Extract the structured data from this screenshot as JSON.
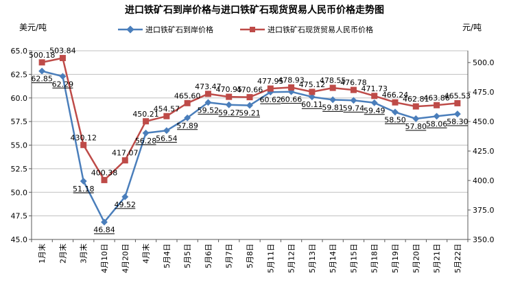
{
  "chart_data": {
    "type": "line",
    "title": "进口铁矿石到岸价格与进口铁矿石现货贸易人民币价格走势图",
    "y_left_unit": "美元/吨",
    "y_right_unit": "元/吨",
    "categories": [
      "1月末",
      "2月末",
      "3月末",
      "4月10日",
      "4月20日",
      "4月末",
      "5月4日",
      "5月5日",
      "5月6日",
      "5月7日",
      "5月8日",
      "5月11日",
      "5月12日",
      "5月13日",
      "5月14日",
      "5月15日",
      "5月18日",
      "5月19日",
      "5月20日",
      "5月21日",
      "5月22日"
    ],
    "y_left_range": [
      45.0,
      65.0
    ],
    "y_left_ticks": [
      "45.0",
      "47.5",
      "50.0",
      "52.5",
      "55.0",
      "57.5",
      "60.0",
      "62.5",
      "65.0"
    ],
    "y_right_range": [
      350.0,
      510.0
    ],
    "y_right_ticks": [
      "350.0",
      "375.0",
      "400.0",
      "425.0",
      "450.0",
      "475.0",
      "500.0"
    ],
    "grid": true,
    "legend_position": "top",
    "series": [
      {
        "name": "进口铁矿石到岸价格",
        "axis": "left",
        "color": "#4a7ebb",
        "marker": "diamond",
        "values": [
          62.85,
          62.29,
          51.18,
          46.84,
          49.52,
          56.28,
          56.54,
          57.89,
          59.52,
          59.27,
          59.21,
          60.62,
          60.66,
          60.11,
          59.81,
          59.74,
          59.49,
          58.5,
          57.8,
          58.06,
          58.3
        ],
        "labels": [
          "62.85",
          "62.29",
          "51.18",
          "46.84",
          "49.52",
          "56.28",
          "56.54",
          "57.89",
          "59.52",
          "59.27",
          "59.21",
          "60.62",
          "60.66",
          "60.11",
          "59.81",
          "59.74",
          "59.49",
          "58.50",
          "57.80",
          "58.06",
          "58.30"
        ]
      },
      {
        "name": "进口铁矿石现货贸易人民币价格",
        "axis": "right",
        "color": "#be4b48",
        "marker": "square",
        "values": [
          500.18,
          503.84,
          430.12,
          400.38,
          417.07,
          450.21,
          454.57,
          465.6,
          473.47,
          470.95,
          470.66,
          477.95,
          478.93,
          475.12,
          478.55,
          476.78,
          471.73,
          466.24,
          462.81,
          463.86,
          465.53
        ],
        "labels": [
          "500.18",
          "503.84",
          "430.12",
          "400.38",
          "417.07",
          "450.21",
          "454.57",
          "465.60",
          "473.47",
          "470.95",
          "470.66",
          "477.95",
          "478.93",
          "475.12",
          "478.55",
          "476.78",
          "471.73",
          "466.24",
          "462.81",
          "463.86",
          "465.53"
        ]
      }
    ]
  }
}
